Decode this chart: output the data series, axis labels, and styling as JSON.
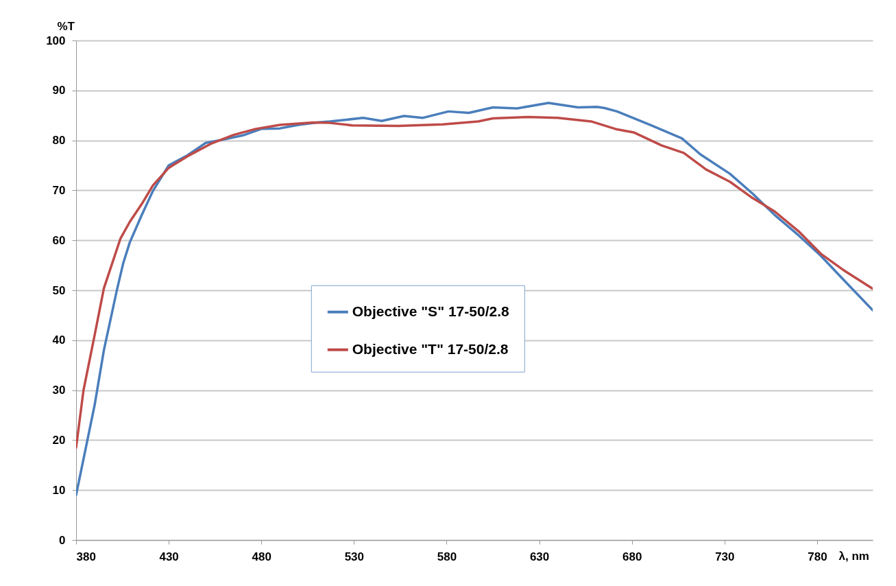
{
  "chart_data": {
    "type": "line",
    "xlabel": "λ, nm",
    "ylabel": "%T",
    "xlim": [
      380,
      810
    ],
    "xticks": [
      380,
      430,
      480,
      530,
      580,
      630,
      680,
      730,
      780
    ],
    "ylim": [
      0,
      100
    ],
    "yticks": [
      0,
      10,
      20,
      30,
      40,
      50,
      60,
      70,
      80,
      90,
      100
    ],
    "grid": "y",
    "legend": "center",
    "line_style": "solid",
    "series": [
      {
        "name": "Objective \"S\" 17-50/2.8",
        "color": "#4a7ebb",
        "x": [
          380,
          390,
          395,
          402,
          405.5,
          409,
          415.5,
          421.5,
          430,
          440,
          450,
          460,
          470,
          480,
          490,
          500,
          510,
          517,
          535,
          545,
          557,
          567,
          581,
          592,
          605,
          618,
          635,
          651,
          661,
          665,
          672,
          690,
          707,
          717,
          733,
          745,
          757,
          770,
          782,
          794,
          810
        ],
        "values": [
          9,
          27,
          38,
          50,
          55.5,
          59.6,
          65.1,
          69.9,
          75,
          77,
          79.5,
          80.2,
          81,
          82.3,
          82.4,
          83.1,
          83.6,
          83.8,
          84.5,
          83.9,
          84.9,
          84.5,
          85.8,
          85.5,
          86.6,
          86.4,
          87.5,
          86.6,
          86.7,
          86.5,
          85.8,
          83.1,
          80.4,
          77.2,
          73.3,
          69.4,
          65.1,
          61,
          56.9,
          52.2,
          46
        ]
      },
      {
        "name": "Objective \"T\" 17-50/2.8",
        "color": "#be4b48",
        "x": [
          380,
          384,
          390,
          395,
          404,
          409,
          415.5,
          421.5,
          430,
          440,
          452.6,
          465,
          477,
          490,
          508,
          517,
          529,
          554,
          578,
          597,
          605,
          624,
          640,
          658,
          672,
          681,
          696,
          708,
          720,
          733,
          745,
          757,
          770,
          782,
          794,
          810
        ],
        "values": [
          18.5,
          30,
          41,
          50.4,
          60.4,
          63.7,
          67.3,
          71,
          74.5,
          76.8,
          79.3,
          81.1,
          82.3,
          83.1,
          83.6,
          83.5,
          83,
          82.9,
          83.2,
          83.8,
          84.4,
          84.7,
          84.5,
          83.8,
          82.2,
          81.6,
          79,
          77.5,
          74.2,
          71.7,
          68.5,
          65.8,
          61.8,
          57.3,
          54.1,
          50.3
        ]
      }
    ]
  }
}
